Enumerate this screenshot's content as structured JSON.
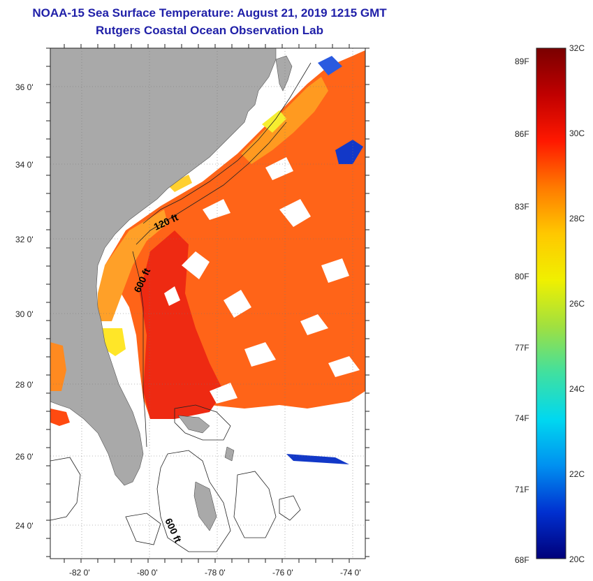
{
  "header": {
    "title": "NOAA-15 Sea Surface Temperature:  August 21, 2019 1215 GMT",
    "subtitle": "Rutgers Coastal Ocean Observation Lab"
  },
  "map": {
    "lat_labels": [
      "36 0'",
      "34 0'",
      "32 0'",
      "30 0'",
      "28 0'",
      "26 0'",
      "24 0'"
    ],
    "lon_labels": [
      "-82 0'",
      "-80 0'",
      "-78 0'",
      "-76 0'",
      "-74 0'"
    ],
    "contour_labels": [
      "120 ft",
      "600 ft",
      "600 ft"
    ]
  },
  "colorbar": {
    "f_labels": [
      "89F",
      "86F",
      "83F",
      "80F",
      "77F",
      "74F",
      "71F",
      "68F"
    ],
    "c_labels": [
      "32C",
      "30C",
      "28C",
      "26C",
      "24C",
      "22C",
      "20C"
    ],
    "colors": [
      "#7a0000",
      "#c00000",
      "#ff1800",
      "#ff7a00",
      "#ffc800",
      "#f0f000",
      "#a0e040",
      "#40e0a0",
      "#00d8f0",
      "#0090f0",
      "#0030d0",
      "#00007a"
    ]
  },
  "colors": {
    "title": "#1f1fa8",
    "land": "#a9a9a9",
    "warm_sst": "#ff5a10",
    "hot_sst": "#e82010",
    "nearshore_sst": "#ffa020",
    "cool_sst": "#ffe020"
  }
}
